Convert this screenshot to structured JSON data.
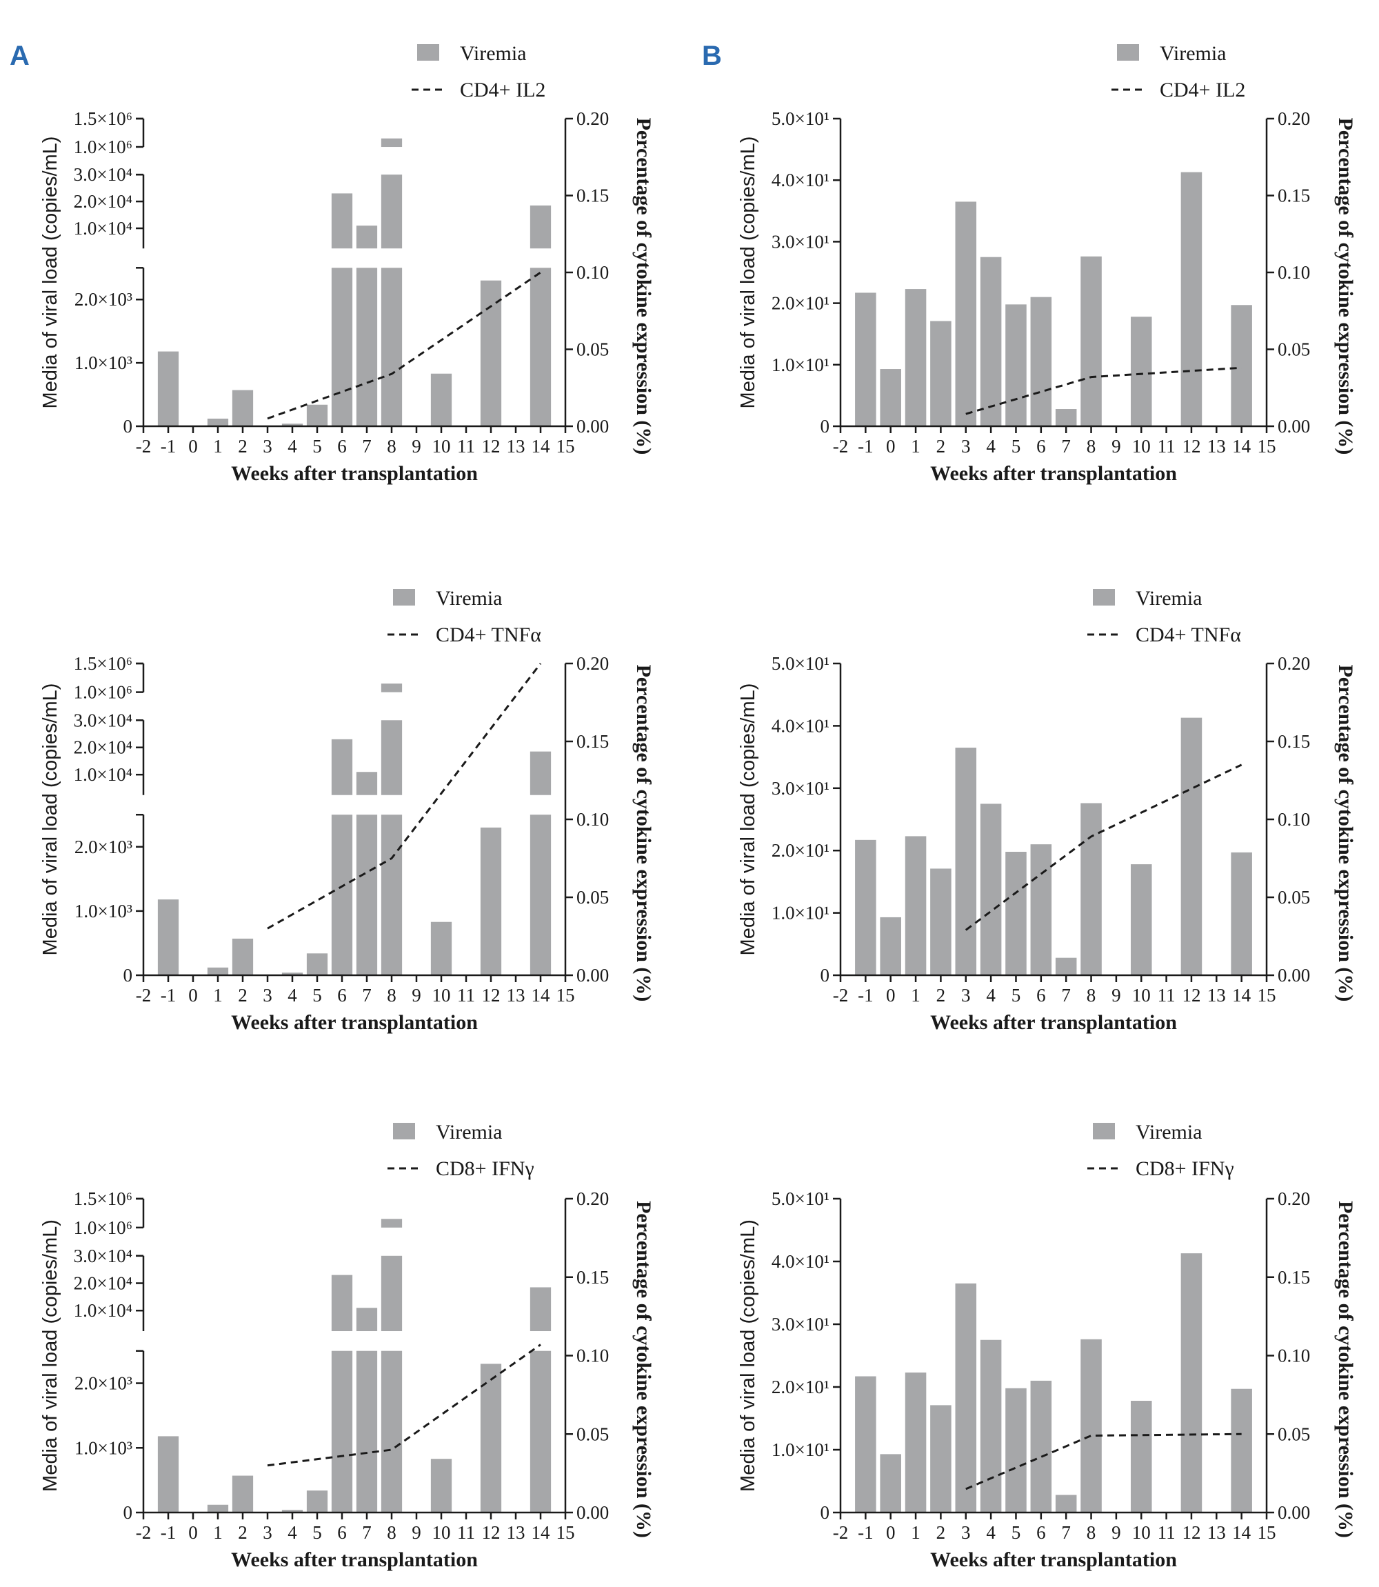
{
  "panel_labels": [
    "A",
    "B"
  ],
  "colors": {
    "bar": "#a6a7a9",
    "line": "#1a1a1a",
    "axis": "#1a1a1a",
    "panel_letter": "#2a6ab0"
  },
  "chart_data": [
    {
      "id": "A-IL2",
      "panel": "A",
      "type": "bar+line",
      "xlabel": "Weeks after transplantation",
      "ylabel": "Media of viral load (copies/mL)",
      "y2label": "Percentage of cytokine expression  (%)",
      "x_ticks": [
        "-2",
        "-1",
        "0",
        "1",
        "2",
        "3",
        "4",
        "5",
        "6",
        "7",
        "8",
        "9",
        "10",
        "11",
        "12",
        "13",
        "14",
        "15"
      ],
      "xlim": [
        -2,
        15
      ],
      "y_segments": [
        {
          "range": [
            0,
            2500
          ],
          "ticks": [
            {
              "v": 0,
              "label": "0"
            },
            {
              "v": 1000,
              "label": "1.0×10³"
            },
            {
              "v": 2000,
              "label": "2.0×10³"
            }
          ]
        },
        {
          "range": [
            2500,
            30000
          ],
          "ticks": [
            {
              "v": 10000,
              "label": "1.0×10⁴"
            },
            {
              "v": 20000,
              "label": "2.0×10⁴"
            },
            {
              "v": 30000,
              "label": "3.0×10⁴"
            }
          ]
        },
        {
          "range": [
            1000000,
            1500000
          ],
          "ticks": [
            {
              "v": 1000000,
              "label": "1.0×10⁶"
            },
            {
              "v": 1500000,
              "label": "1.5×10⁶"
            }
          ]
        }
      ],
      "y2_ticks": [
        {
          "v": 0,
          "label": "0.00"
        },
        {
          "v": 0.05,
          "label": "0.05"
        },
        {
          "v": 0.1,
          "label": "0.10"
        },
        {
          "v": 0.15,
          "label": "0.15"
        },
        {
          "v": 0.2,
          "label": "0.20"
        }
      ],
      "y2lim": [
        0,
        0.2
      ],
      "bars": {
        "name": "Viremia",
        "x": [
          -1,
          1,
          2,
          4,
          5,
          6,
          7,
          8,
          10,
          12,
          14
        ],
        "values": [
          1180,
          120,
          570,
          40,
          340,
          23000,
          11000,
          1150000,
          830,
          2300,
          18500
        ]
      },
      "line": {
        "name": "CD4+ IL2",
        "x": [
          3,
          8,
          14
        ],
        "values": [
          0.005,
          0.034,
          0.1
        ]
      }
    },
    {
      "id": "A-TNF",
      "panel": "A",
      "type": "bar+line",
      "xlabel": "Weeks after transplantation",
      "ylabel": "Media of viral load (copies/mL)",
      "y2label": "Percentage of cytokine expression  (%)",
      "x_ticks": [
        "-2",
        "-1",
        "0",
        "1",
        "2",
        "3",
        "4",
        "5",
        "6",
        "7",
        "8",
        "9",
        "10",
        "11",
        "12",
        "13",
        "14",
        "15"
      ],
      "xlim": [
        -2,
        15
      ],
      "y_segments": [
        {
          "range": [
            0,
            2500
          ],
          "ticks": [
            {
              "v": 0,
              "label": "0"
            },
            {
              "v": 1000,
              "label": "1.0×10³"
            },
            {
              "v": 2000,
              "label": "2.0×10³"
            }
          ]
        },
        {
          "range": [
            2500,
            30000
          ],
          "ticks": [
            {
              "v": 10000,
              "label": "1.0×10⁴"
            },
            {
              "v": 20000,
              "label": "2.0×10⁴"
            },
            {
              "v": 30000,
              "label": "3.0×10⁴"
            }
          ]
        },
        {
          "range": [
            1000000,
            1500000
          ],
          "ticks": [
            {
              "v": 1000000,
              "label": "1.0×10⁶"
            },
            {
              "v": 1500000,
              "label": "1.5×10⁶"
            }
          ]
        }
      ],
      "y2_ticks": [
        {
          "v": 0,
          "label": "0.00"
        },
        {
          "v": 0.05,
          "label": "0.05"
        },
        {
          "v": 0.1,
          "label": "0.10"
        },
        {
          "v": 0.15,
          "label": "0.15"
        },
        {
          "v": 0.2,
          "label": "0.20"
        }
      ],
      "y2lim": [
        0,
        0.2
      ],
      "bars": {
        "name": "Viremia",
        "x": [
          -1,
          1,
          2,
          4,
          5,
          6,
          7,
          8,
          10,
          12,
          14
        ],
        "values": [
          1180,
          120,
          570,
          40,
          340,
          23000,
          11000,
          1150000,
          830,
          2300,
          18500
        ]
      },
      "line": {
        "name": "CD4+ TNFα",
        "x": [
          3,
          8,
          14
        ],
        "values": [
          0.03,
          0.075,
          0.2
        ]
      }
    },
    {
      "id": "A-IFN",
      "panel": "A",
      "type": "bar+line",
      "xlabel": "Weeks after transplantation",
      "ylabel": "Media of viral load (copies/mL)",
      "y2label": "Percentage of cytokine expression  (%)",
      "x_ticks": [
        "-2",
        "-1",
        "0",
        "1",
        "2",
        "3",
        "4",
        "5",
        "6",
        "7",
        "8",
        "9",
        "10",
        "11",
        "12",
        "13",
        "14",
        "15"
      ],
      "xlim": [
        -2,
        15
      ],
      "y_segments": [
        {
          "range": [
            0,
            2500
          ],
          "ticks": [
            {
              "v": 0,
              "label": "0"
            },
            {
              "v": 1000,
              "label": "1.0×10³"
            },
            {
              "v": 2000,
              "label": "2.0×10³"
            }
          ]
        },
        {
          "range": [
            2500,
            30000
          ],
          "ticks": [
            {
              "v": 10000,
              "label": "1.0×10⁴"
            },
            {
              "v": 20000,
              "label": "2.0×10⁴"
            },
            {
              "v": 30000,
              "label": "3.0×10⁴"
            }
          ]
        },
        {
          "range": [
            1000000,
            1500000
          ],
          "ticks": [
            {
              "v": 1000000,
              "label": "1.0×10⁶"
            },
            {
              "v": 1500000,
              "label": "1.5×10⁶"
            }
          ]
        }
      ],
      "y2_ticks": [
        {
          "v": 0,
          "label": "0.00"
        },
        {
          "v": 0.05,
          "label": "0.05"
        },
        {
          "v": 0.1,
          "label": "0.10"
        },
        {
          "v": 0.15,
          "label": "0.15"
        },
        {
          "v": 0.2,
          "label": "0.20"
        }
      ],
      "y2lim": [
        0,
        0.2
      ],
      "bars": {
        "name": "Viremia",
        "x": [
          -1,
          1,
          2,
          4,
          5,
          6,
          7,
          8,
          10,
          12,
          14
        ],
        "values": [
          1180,
          120,
          570,
          40,
          340,
          23000,
          11000,
          1150000,
          830,
          2300,
          18500
        ]
      },
      "line": {
        "name": "CD8+ IFNγ",
        "x": [
          3,
          8,
          14
        ],
        "values": [
          0.03,
          0.04,
          0.107
        ]
      }
    },
    {
      "id": "B-IL2",
      "panel": "B",
      "type": "bar+line",
      "xlabel": "Weeks after transplantation",
      "ylabel": "Media of viral load (copies/mL)",
      "y2label": "Percentage of cytokine expression  (%)",
      "x_ticks": [
        "-2",
        "-1",
        "0",
        "1",
        "2",
        "3",
        "4",
        "5",
        "6",
        "7",
        "8",
        "9",
        "10",
        "11",
        "12",
        "13",
        "14",
        "15"
      ],
      "xlim": [
        -2,
        15
      ],
      "y_ticks": [
        {
          "v": 0,
          "label": "0"
        },
        {
          "v": 10,
          "label": "1.0×10¹"
        },
        {
          "v": 20,
          "label": "2.0×10¹"
        },
        {
          "v": 30,
          "label": "3.0×10¹"
        },
        {
          "v": 40,
          "label": "4.0×10¹"
        },
        {
          "v": 50,
          "label": "5.0×10¹"
        }
      ],
      "ylim": [
        0,
        50
      ],
      "y2_ticks": [
        {
          "v": 0,
          "label": "0.00"
        },
        {
          "v": 0.05,
          "label": "0.05"
        },
        {
          "v": 0.1,
          "label": "0.10"
        },
        {
          "v": 0.15,
          "label": "0.15"
        },
        {
          "v": 0.2,
          "label": "0.20"
        }
      ],
      "y2lim": [
        0,
        0.2
      ],
      "bars": {
        "name": "Viremia",
        "x": [
          -1,
          0,
          1,
          2,
          3,
          4,
          5,
          6,
          7,
          8,
          10,
          12,
          14
        ],
        "values": [
          21.7,
          9.3,
          22.3,
          17.1,
          36.5,
          27.5,
          19.8,
          21.0,
          2.8,
          27.6,
          17.8,
          41.3,
          19.7
        ]
      },
      "line": {
        "name": "CD4+ IL2",
        "x": [
          3,
          8,
          14
        ],
        "values": [
          0.008,
          0.032,
          0.038
        ]
      }
    },
    {
      "id": "B-TNF",
      "panel": "B",
      "type": "bar+line",
      "xlabel": "Weeks after transplantation",
      "ylabel": "Media of viral load (copies/mL)",
      "y2label": "Percentage of cytokine expression  (%)",
      "x_ticks": [
        "-2",
        "-1",
        "0",
        "1",
        "2",
        "3",
        "4",
        "5",
        "6",
        "7",
        "8",
        "9",
        "10",
        "11",
        "12",
        "13",
        "14",
        "15"
      ],
      "xlim": [
        -2,
        15
      ],
      "y_ticks": [
        {
          "v": 0,
          "label": "0"
        },
        {
          "v": 10,
          "label": "1.0×10¹"
        },
        {
          "v": 20,
          "label": "2.0×10¹"
        },
        {
          "v": 30,
          "label": "3.0×10¹"
        },
        {
          "v": 40,
          "label": "4.0×10¹"
        },
        {
          "v": 50,
          "label": "5.0×10¹"
        }
      ],
      "ylim": [
        0,
        50
      ],
      "y2_ticks": [
        {
          "v": 0,
          "label": "0.00"
        },
        {
          "v": 0.05,
          "label": "0.05"
        },
        {
          "v": 0.1,
          "label": "0.10"
        },
        {
          "v": 0.15,
          "label": "0.15"
        },
        {
          "v": 0.2,
          "label": "0.20"
        }
      ],
      "y2lim": [
        0,
        0.2
      ],
      "bars": {
        "name": "Viremia",
        "x": [
          -1,
          0,
          1,
          2,
          3,
          4,
          5,
          6,
          7,
          8,
          10,
          12,
          14
        ],
        "values": [
          21.7,
          9.3,
          22.3,
          17.1,
          36.5,
          27.5,
          19.8,
          21.0,
          2.8,
          27.6,
          17.8,
          41.3,
          19.7
        ]
      },
      "line": {
        "name": "CD4+ TNFα",
        "x": [
          3,
          8,
          14
        ],
        "values": [
          0.029,
          0.089,
          0.135
        ]
      }
    },
    {
      "id": "B-IFN",
      "panel": "B",
      "type": "bar+line",
      "xlabel": "Weeks after transplantation",
      "ylabel": "Media of viral load (copies/mL)",
      "y2label": "Percentage of cytokine expression  (%)",
      "x_ticks": [
        "-2",
        "-1",
        "0",
        "1",
        "2",
        "3",
        "4",
        "5",
        "6",
        "7",
        "8",
        "9",
        "10",
        "11",
        "12",
        "13",
        "14",
        "15"
      ],
      "xlim": [
        -2,
        15
      ],
      "y_ticks": [
        {
          "v": 0,
          "label": "0"
        },
        {
          "v": 10,
          "label": "1.0×10¹"
        },
        {
          "v": 20,
          "label": "2.0×10¹"
        },
        {
          "v": 30,
          "label": "3.0×10¹"
        },
        {
          "v": 40,
          "label": "4.0×10¹"
        },
        {
          "v": 50,
          "label": "5.0×10¹"
        }
      ],
      "ylim": [
        0,
        50
      ],
      "y2_ticks": [
        {
          "v": 0,
          "label": "0.00"
        },
        {
          "v": 0.05,
          "label": "0.05"
        },
        {
          "v": 0.1,
          "label": "0.10"
        },
        {
          "v": 0.15,
          "label": "0.15"
        },
        {
          "v": 0.2,
          "label": "0.20"
        }
      ],
      "y2lim": [
        0,
        0.2
      ],
      "bars": {
        "name": "Viremia",
        "x": [
          -1,
          0,
          1,
          2,
          3,
          4,
          5,
          6,
          7,
          8,
          10,
          12,
          14
        ],
        "values": [
          21.7,
          9.3,
          22.3,
          17.1,
          36.5,
          27.5,
          19.8,
          21.0,
          2.8,
          27.6,
          17.8,
          41.3,
          19.7
        ]
      },
      "line": {
        "name": "CD8+ IFNγ",
        "x": [
          3,
          8,
          14
        ],
        "values": [
          0.015,
          0.049,
          0.05
        ]
      }
    }
  ]
}
